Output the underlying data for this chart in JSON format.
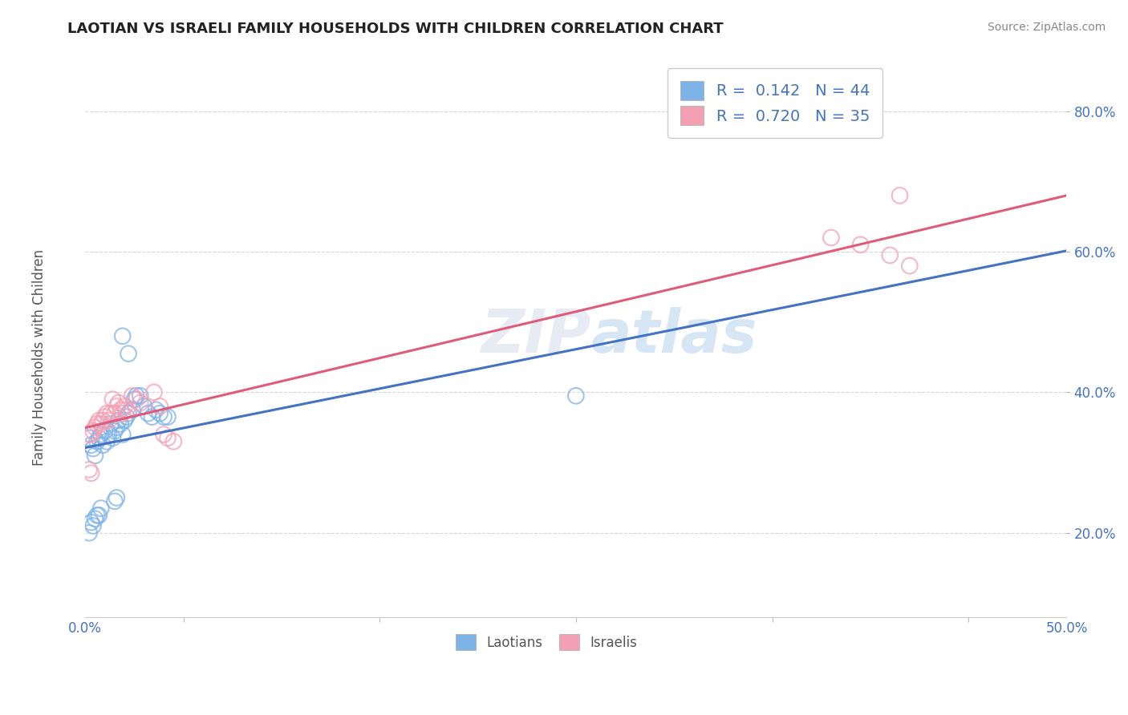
{
  "title": "LAOTIAN VS ISRAELI FAMILY HOUSEHOLDS WITH CHILDREN CORRELATION CHART",
  "source_text": "Source: ZipAtlas.com",
  "ylabel": "Family Households with Children",
  "xlim": [
    0.0,
    0.5
  ],
  "ylim": [
    0.08,
    0.88
  ],
  "laotian_color": "#7eb3e8",
  "israeli_color": "#f4a0b4",
  "laotian_line_color": "#4472c4",
  "israeli_line_color": "#e05b7a",
  "background_color": "#ffffff",
  "grid_color": "#cccccc",
  "laotian_scatter": [
    [
      0.002,
      0.335
    ],
    [
      0.003,
      0.325
    ],
    [
      0.004,
      0.32
    ],
    [
      0.005,
      0.31
    ],
    [
      0.006,
      0.33
    ],
    [
      0.007,
      0.335
    ],
    [
      0.008,
      0.34
    ],
    [
      0.009,
      0.325
    ],
    [
      0.01,
      0.345
    ],
    [
      0.011,
      0.33
    ],
    [
      0.012,
      0.34
    ],
    [
      0.013,
      0.355
    ],
    [
      0.014,
      0.335
    ],
    [
      0.015,
      0.345
    ],
    [
      0.016,
      0.35
    ],
    [
      0.017,
      0.36
    ],
    [
      0.018,
      0.355
    ],
    [
      0.019,
      0.34
    ],
    [
      0.02,
      0.36
    ],
    [
      0.021,
      0.365
    ],
    [
      0.022,
      0.37
    ],
    [
      0.024,
      0.375
    ],
    [
      0.025,
      0.39
    ],
    [
      0.026,
      0.395
    ],
    [
      0.028,
      0.395
    ],
    [
      0.03,
      0.38
    ],
    [
      0.032,
      0.37
    ],
    [
      0.034,
      0.365
    ],
    [
      0.036,
      0.375
    ],
    [
      0.038,
      0.37
    ],
    [
      0.04,
      0.365
    ],
    [
      0.042,
      0.365
    ],
    [
      0.002,
      0.2
    ],
    [
      0.003,
      0.215
    ],
    [
      0.004,
      0.21
    ],
    [
      0.005,
      0.22
    ],
    [
      0.006,
      0.225
    ],
    [
      0.007,
      0.225
    ],
    [
      0.008,
      0.235
    ],
    [
      0.015,
      0.245
    ],
    [
      0.016,
      0.25
    ],
    [
      0.25,
      0.395
    ],
    [
      0.019,
      0.48
    ],
    [
      0.022,
      0.455
    ]
  ],
  "israeli_scatter": [
    [
      0.002,
      0.34
    ],
    [
      0.003,
      0.34
    ],
    [
      0.004,
      0.345
    ],
    [
      0.005,
      0.35
    ],
    [
      0.006,
      0.355
    ],
    [
      0.007,
      0.36
    ],
    [
      0.008,
      0.355
    ],
    [
      0.009,
      0.36
    ],
    [
      0.01,
      0.365
    ],
    [
      0.011,
      0.37
    ],
    [
      0.012,
      0.36
    ],
    [
      0.013,
      0.37
    ],
    [
      0.014,
      0.39
    ],
    [
      0.015,
      0.37
    ],
    [
      0.016,
      0.38
    ],
    [
      0.017,
      0.385
    ],
    [
      0.018,
      0.375
    ],
    [
      0.019,
      0.37
    ],
    [
      0.02,
      0.38
    ],
    [
      0.021,
      0.375
    ],
    [
      0.024,
      0.395
    ],
    [
      0.026,
      0.39
    ],
    [
      0.028,
      0.385
    ],
    [
      0.035,
      0.4
    ],
    [
      0.038,
      0.38
    ],
    [
      0.04,
      0.34
    ],
    [
      0.042,
      0.335
    ],
    [
      0.045,
      0.33
    ],
    [
      0.002,
      0.29
    ],
    [
      0.003,
      0.285
    ],
    [
      0.38,
      0.62
    ],
    [
      0.395,
      0.61
    ],
    [
      0.41,
      0.595
    ],
    [
      0.415,
      0.68
    ],
    [
      0.42,
      0.58
    ]
  ]
}
